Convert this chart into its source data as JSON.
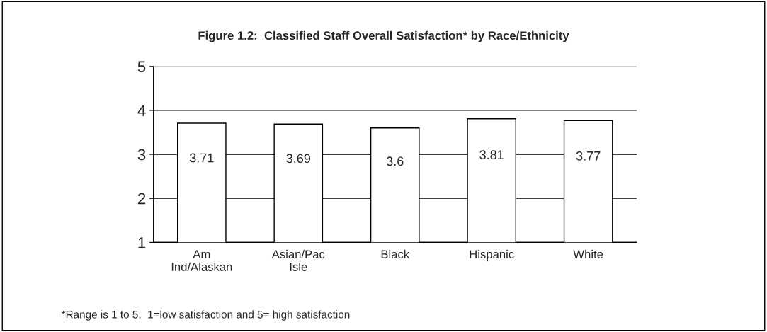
{
  "chart_data": {
    "type": "bar",
    "title": "Figure 1.2:  Classified Staff Overall Satisfaction* by Race/Ethnicity",
    "categories": [
      "Am\nInd/Alaskan",
      "Asian/Pac\nIsle",
      "Black",
      "Hispanic",
      "White"
    ],
    "values": [
      3.71,
      3.69,
      3.6,
      3.81,
      3.77
    ],
    "color": "#ffffff",
    "ylim": [
      1,
      5
    ],
    "yticks": [
      1,
      2,
      3,
      4,
      5
    ],
    "grid": "y",
    "data_labels": true,
    "annotations": [
      "*Range is 1 to 5,  1=low satisfaction and 5= high satisfaction"
    ]
  }
}
